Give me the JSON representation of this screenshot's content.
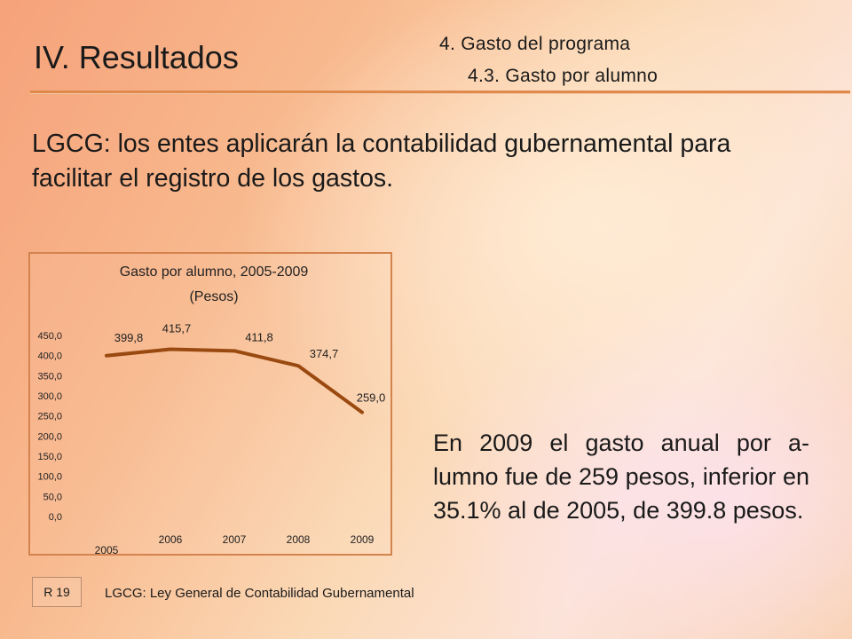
{
  "header": {
    "title": "IV. Resultados",
    "subtitle_1": "4. Gasto del programa",
    "subtitle_2": "4.3. Gasto por alumno"
  },
  "intro_text": "LGCG: los entes aplicarán la contabilidad gubernamental para facilitar el registro de los gastos.",
  "note_text": "En 2009 el gasto anual por a-lumno fue de 259 pesos, inferior en 35.1% al de 2005, de 399.8 pesos.",
  "footer": {
    "slide_code": "R 19",
    "footnote": "LGCG:  Ley General de Contabilidad Gubernamental"
  },
  "colors": {
    "line": "#9a4a10",
    "accent_rule": "#e0894c",
    "chart_border": "#d4834f"
  },
  "chart_data": {
    "type": "line",
    "title": "Gasto por alumno, 2005-2009",
    "subtitle": "(Pesos)",
    "categories": [
      "2005",
      "2006",
      "2007",
      "2008",
      "2009"
    ],
    "values": [
      399.8,
      415.7,
      411.8,
      374.7,
      259.0
    ],
    "data_labels": [
      "399,8",
      "415,7",
      "411,8",
      "374,7",
      "259,0"
    ],
    "y_ticks": [
      "0,0",
      "50,0",
      "100,0",
      "150,0",
      "200,0",
      "250,0",
      "300,0",
      "350,0",
      "400,0",
      "450,0"
    ],
    "ylim": [
      0,
      450
    ],
    "grid": false,
    "legend": "none"
  }
}
